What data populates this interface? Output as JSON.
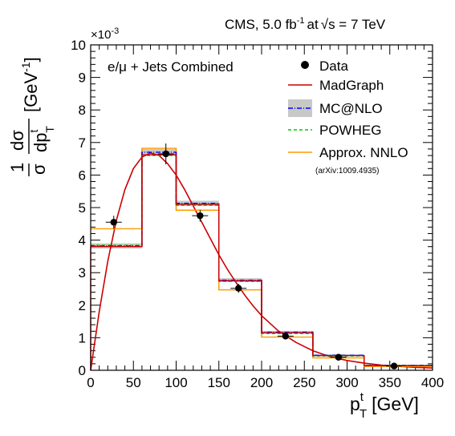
{
  "header": {
    "experiment": "CMS, 5.0 fb",
    "lumi_sup": "-1",
    "energy_mid": "at",
    "sqrt_sym": "√",
    "energy_tail": "s = 7 TeV"
  },
  "chart_data": {
    "type": "line",
    "title": "e/μ + Jets Combined",
    "xlabel": {
      "main": "p",
      "sup": "t",
      "sub": "T",
      "unit": "[GeV]"
    },
    "ylabel": {
      "one": "1",
      "sigma": "σ",
      "num": "dσ",
      "den": "dp",
      "den_sup": "t",
      "den_sub": "T",
      "unit": "[GeV",
      "unit_sup": "-1",
      "unit_close": "]"
    },
    "y_multiplier": "×10",
    "y_multiplier_exp": "-3",
    "xlim": [
      0,
      400
    ],
    "ylim": [
      0,
      10
    ],
    "x_ticks": [
      0,
      50,
      100,
      150,
      200,
      250,
      300,
      350,
      400
    ],
    "y_ticks": [
      0,
      1,
      2,
      3,
      4,
      5,
      6,
      7,
      8,
      9,
      10
    ],
    "bin_edges": [
      0,
      60,
      100,
      150,
      200,
      260,
      320,
      400
    ],
    "data": {
      "x": [
        27,
        88,
        128,
        173,
        228,
        290,
        355
      ],
      "y": [
        4.55,
        6.65,
        4.75,
        2.52,
        1.05,
        0.4,
        0.13
      ],
      "yerr": [
        0.2,
        0.32,
        0.18,
        0.14,
        0.07,
        0.04,
        0.03
      ]
    },
    "series": [
      {
        "name": "MadGraph",
        "style": "step",
        "color": "#cc0000",
        "values": [
          3.8,
          6.62,
          5.1,
          2.75,
          1.15,
          0.45,
          0.14
        ]
      },
      {
        "name": "MC@NLO",
        "style": "step",
        "color": "#0000ff",
        "band_color": "#c8c8c8",
        "values": [
          3.82,
          6.7,
          5.13,
          2.77,
          1.17,
          0.46,
          0.15
        ],
        "band": [
          0.08,
          0.1,
          0.08,
          0.06,
          0.04,
          0.03,
          0.02
        ]
      },
      {
        "name": "POWHEG",
        "style": "step",
        "color": "#00cc00",
        "values": [
          3.84,
          6.6,
          5.07,
          2.73,
          1.13,
          0.44,
          0.15
        ]
      },
      {
        "name": "Approx. NNLO",
        "style": "step",
        "color": "#ff9900",
        "values": [
          4.35,
          6.82,
          4.92,
          2.47,
          1.02,
          0.38,
          0.12
        ]
      },
      {
        "name": "MadGraph",
        "style": "curve",
        "color": "#cc0000",
        "x": [
          0,
          10,
          20,
          30,
          40,
          50,
          60,
          70,
          80,
          90,
          100,
          110,
          120,
          130,
          140,
          150,
          160,
          170,
          180,
          190,
          200,
          220,
          240,
          260,
          280,
          300,
          320,
          340,
          360,
          380,
          400
        ],
        "y": [
          0,
          1.8,
          3.35,
          4.6,
          5.55,
          6.2,
          6.55,
          6.68,
          6.6,
          6.35,
          6.0,
          5.55,
          5.05,
          4.55,
          4.05,
          3.55,
          3.1,
          2.7,
          2.32,
          1.98,
          1.68,
          1.2,
          0.86,
          0.6,
          0.42,
          0.3,
          0.22,
          0.16,
          0.12,
          0.09,
          0.07
        ]
      }
    ],
    "legend": {
      "placement": "top-right",
      "items": [
        {
          "label": "Data",
          "kind": "marker"
        },
        {
          "label": "MadGraph",
          "kind": "line",
          "color": "#cc0000"
        },
        {
          "label": "MC@NLO",
          "kind": "band",
          "color": "#0000ff",
          "band_color": "#c8c8c8"
        },
        {
          "label": "POWHEG",
          "kind": "dashed",
          "color": "#00cc00"
        },
        {
          "label": "Approx. NNLO",
          "kind": "line",
          "color": "#ff9900"
        }
      ],
      "note": "(arXiv:1009.4935)"
    }
  }
}
